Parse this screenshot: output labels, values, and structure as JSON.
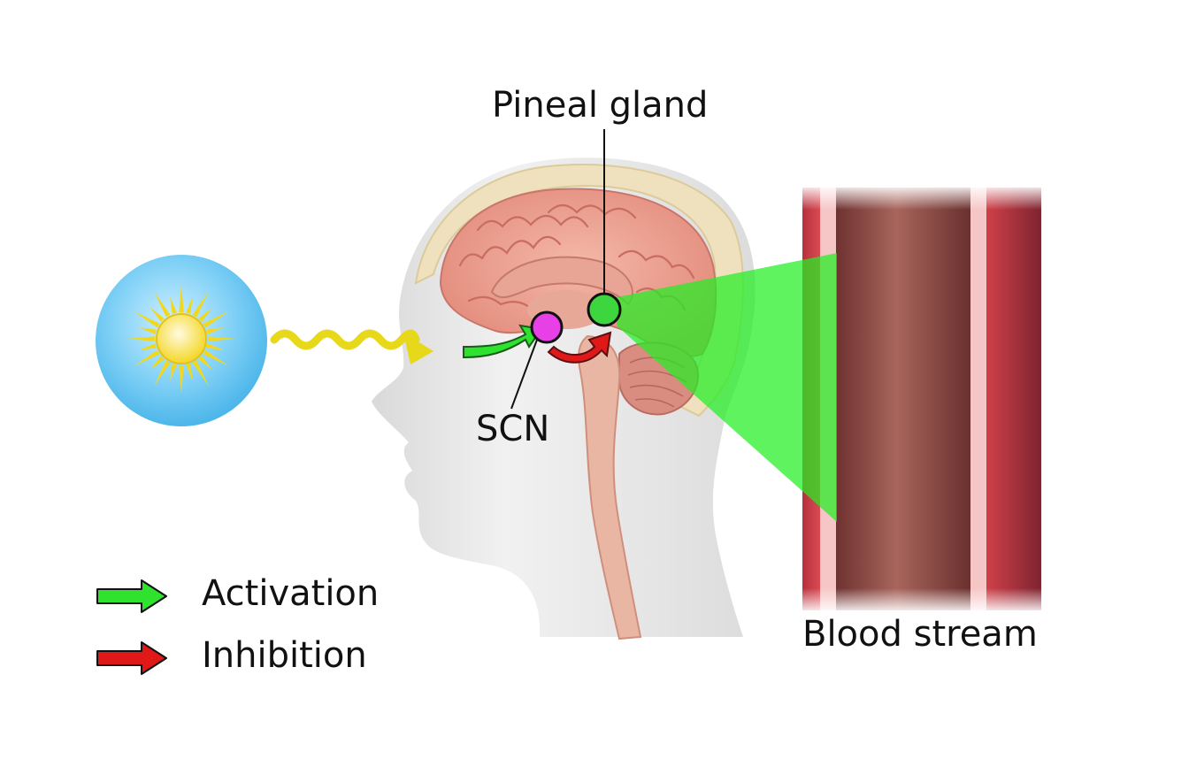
{
  "labels": {
    "pineal_gland": "Pineal gland",
    "scn": "SCN",
    "blood_stream": "Blood stream"
  },
  "legend": {
    "activation": "Activation",
    "inhibition": "Inhibition"
  },
  "icons": {
    "sun": "sun-icon",
    "light_wave": "wavy-arrow-icon",
    "activation": "green-arrow-icon",
    "inhibition": "red-arrow-icon"
  },
  "colors": {
    "activation": "#2ee22e",
    "inhibition": "#e01818",
    "scn_marker": "#e640e6",
    "pineal_marker": "#3ed63e",
    "melatonin_beam": "#22ee22",
    "light_wave": "#e8d81a",
    "sun_disc": "#5cc4f0",
    "sun_rays": "#f2d81c",
    "vessel_wall": "#c93b45",
    "vessel_lumen": "#7a3a34"
  }
}
